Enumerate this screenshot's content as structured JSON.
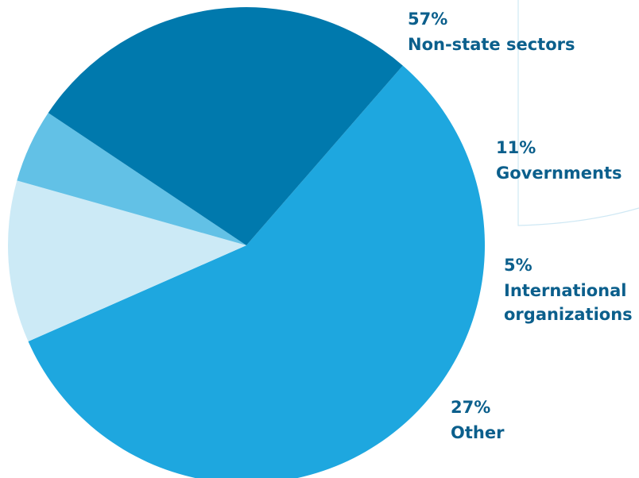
{
  "chart_data": {
    "type": "pie",
    "title": "",
    "slices": [
      {
        "label": "Non-state sectors",
        "pct_label": "57%",
        "value": 57,
        "color": "#1ea7df"
      },
      {
        "label": "Governments",
        "pct_label": "11%",
        "value": 11,
        "color": "#cceaf6"
      },
      {
        "label": "International organizations",
        "pct_label": "5%",
        "value": 5,
        "color": "#62c1e6"
      },
      {
        "label": "Other",
        "pct_label": "27%",
        "value": 27,
        "color": "#0079ad"
      }
    ],
    "legend": "none",
    "label_color": "#0b5f8c"
  }
}
